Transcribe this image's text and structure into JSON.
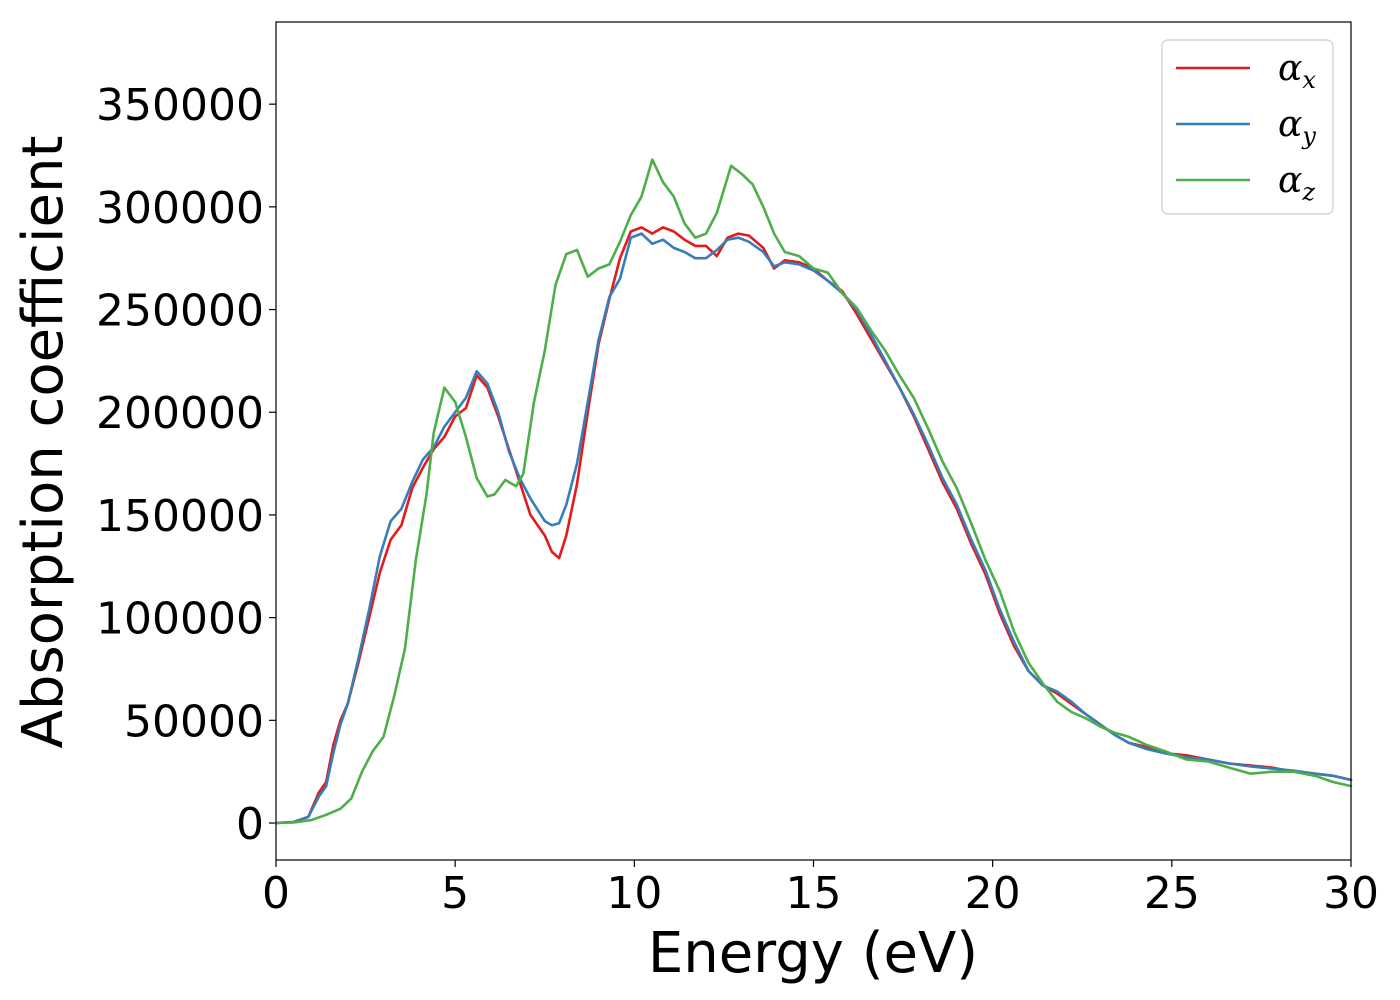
{
  "chart_data": {
    "type": "line",
    "title": "",
    "xlabel": "Energy (eV)",
    "ylabel": "Absorption coefficient",
    "xlim": [
      0,
      30
    ],
    "ylim": [
      -18000,
      390000
    ],
    "xticks": [
      0,
      5,
      10,
      15,
      20,
      25,
      30
    ],
    "yticks": [
      0,
      50000,
      100000,
      150000,
      200000,
      250000,
      300000,
      350000
    ],
    "grid": false,
    "legend_position": "top-right",
    "series": [
      {
        "name": "αx",
        "symbol": "α",
        "subscript": "x",
        "color": "#e41a1c",
        "points": [
          [
            0,
            0
          ],
          [
            0.5,
            500
          ],
          [
            0.9,
            3000
          ],
          [
            1.2,
            15000
          ],
          [
            1.4,
            20000
          ],
          [
            1.6,
            38000
          ],
          [
            1.8,
            50000
          ],
          [
            2.0,
            58000
          ],
          [
            2.3,
            78000
          ],
          [
            2.6,
            100000
          ],
          [
            2.9,
            122000
          ],
          [
            3.2,
            138000
          ],
          [
            3.5,
            145000
          ],
          [
            3.8,
            163000
          ],
          [
            4.1,
            173000
          ],
          [
            4.4,
            182000
          ],
          [
            4.7,
            188000
          ],
          [
            5.0,
            198000
          ],
          [
            5.3,
            202000
          ],
          [
            5.6,
            218000
          ],
          [
            5.9,
            212000
          ],
          [
            6.2,
            198000
          ],
          [
            6.5,
            182000
          ],
          [
            6.8,
            166000
          ],
          [
            7.1,
            150000
          ],
          [
            7.5,
            140000
          ],
          [
            7.7,
            132000
          ],
          [
            7.9,
            129000
          ],
          [
            8.1,
            140000
          ],
          [
            8.4,
            165000
          ],
          [
            8.7,
            200000
          ],
          [
            9.0,
            233000
          ],
          [
            9.3,
            255000
          ],
          [
            9.6,
            275000
          ],
          [
            9.9,
            288000
          ],
          [
            10.2,
            290000
          ],
          [
            10.5,
            287000
          ],
          [
            10.8,
            290000
          ],
          [
            11.1,
            288000
          ],
          [
            11.4,
            284000
          ],
          [
            11.7,
            281000
          ],
          [
            12.0,
            281000
          ],
          [
            12.3,
            276000
          ],
          [
            12.6,
            285000
          ],
          [
            12.9,
            287000
          ],
          [
            13.2,
            286000
          ],
          [
            13.6,
            280000
          ],
          [
            13.9,
            270000
          ],
          [
            14.2,
            274000
          ],
          [
            14.6,
            273000
          ],
          [
            15.0,
            270000
          ],
          [
            15.4,
            264000
          ],
          [
            15.8,
            259000
          ],
          [
            16.2,
            248000
          ],
          [
            16.6,
            236000
          ],
          [
            17.0,
            224000
          ],
          [
            17.4,
            212000
          ],
          [
            17.8,
            198000
          ],
          [
            18.2,
            182000
          ],
          [
            18.6,
            166000
          ],
          [
            19.0,
            153000
          ],
          [
            19.4,
            136000
          ],
          [
            19.8,
            121000
          ],
          [
            20.2,
            102000
          ],
          [
            20.6,
            86000
          ],
          [
            21.0,
            74000
          ],
          [
            21.4,
            67000
          ],
          [
            21.8,
            63000
          ],
          [
            22.2,
            58000
          ],
          [
            22.6,
            53000
          ],
          [
            23.0,
            48000
          ],
          [
            23.4,
            43000
          ],
          [
            23.8,
            39000
          ],
          [
            24.3,
            37000
          ],
          [
            24.8,
            34000
          ],
          [
            25.4,
            33000
          ],
          [
            26.0,
            31000
          ],
          [
            26.6,
            29000
          ],
          [
            27.2,
            28000
          ],
          [
            27.8,
            27000
          ],
          [
            28.4,
            25000
          ],
          [
            29.0,
            24000
          ],
          [
            29.5,
            23000
          ],
          [
            30.0,
            21000
          ]
        ]
      },
      {
        "name": "αy",
        "symbol": "α",
        "subscript": "y",
        "color": "#377eb8",
        "points": [
          [
            0,
            0
          ],
          [
            0.5,
            500
          ],
          [
            0.9,
            3000
          ],
          [
            1.2,
            13000
          ],
          [
            1.4,
            18000
          ],
          [
            1.6,
            34000
          ],
          [
            1.8,
            48000
          ],
          [
            2.0,
            58000
          ],
          [
            2.3,
            80000
          ],
          [
            2.6,
            104000
          ],
          [
            2.9,
            130000
          ],
          [
            3.2,
            147000
          ],
          [
            3.5,
            153000
          ],
          [
            3.8,
            166000
          ],
          [
            4.1,
            177000
          ],
          [
            4.4,
            183000
          ],
          [
            4.7,
            193000
          ],
          [
            5.0,
            200000
          ],
          [
            5.3,
            207000
          ],
          [
            5.6,
            220000
          ],
          [
            5.9,
            214000
          ],
          [
            6.2,
            200000
          ],
          [
            6.5,
            181000
          ],
          [
            6.8,
            168000
          ],
          [
            7.1,
            158000
          ],
          [
            7.5,
            147000
          ],
          [
            7.7,
            145000
          ],
          [
            7.9,
            146000
          ],
          [
            8.1,
            155000
          ],
          [
            8.4,
            175000
          ],
          [
            8.7,
            205000
          ],
          [
            9.0,
            235000
          ],
          [
            9.3,
            256000
          ],
          [
            9.6,
            265000
          ],
          [
            9.9,
            285000
          ],
          [
            10.2,
            287000
          ],
          [
            10.5,
            282000
          ],
          [
            10.8,
            284000
          ],
          [
            11.1,
            280000
          ],
          [
            11.4,
            278000
          ],
          [
            11.7,
            275000
          ],
          [
            12.0,
            275000
          ],
          [
            12.3,
            279000
          ],
          [
            12.6,
            284000
          ],
          [
            12.9,
            285000
          ],
          [
            13.2,
            283000
          ],
          [
            13.6,
            278000
          ],
          [
            13.9,
            271000
          ],
          [
            14.2,
            273000
          ],
          [
            14.6,
            272000
          ],
          [
            15.0,
            269000
          ],
          [
            15.4,
            264000
          ],
          [
            15.8,
            258000
          ],
          [
            16.2,
            250000
          ],
          [
            16.6,
            238000
          ],
          [
            17.0,
            225000
          ],
          [
            17.4,
            212000
          ],
          [
            17.8,
            199000
          ],
          [
            18.2,
            184000
          ],
          [
            18.6,
            168000
          ],
          [
            19.0,
            155000
          ],
          [
            19.4,
            138000
          ],
          [
            19.8,
            123000
          ],
          [
            20.2,
            104000
          ],
          [
            20.6,
            88000
          ],
          [
            21.0,
            74000
          ],
          [
            21.4,
            67000
          ],
          [
            21.8,
            64000
          ],
          [
            22.2,
            59000
          ],
          [
            22.6,
            53000
          ],
          [
            23.0,
            48000
          ],
          [
            23.4,
            43000
          ],
          [
            23.8,
            39000
          ],
          [
            24.3,
            36000
          ],
          [
            24.8,
            34000
          ],
          [
            25.4,
            32000
          ],
          [
            26.0,
            31000
          ],
          [
            26.6,
            29000
          ],
          [
            27.2,
            27500
          ],
          [
            27.8,
            26500
          ],
          [
            28.4,
            25500
          ],
          [
            29.0,
            24000
          ],
          [
            29.5,
            23000
          ],
          [
            30.0,
            21000
          ]
        ]
      },
      {
        "name": "αz",
        "symbol": "α",
        "subscript": "z",
        "color": "#4daf4a",
        "points": [
          [
            0,
            0
          ],
          [
            0.5,
            300
          ],
          [
            1.0,
            1500
          ],
          [
            1.4,
            4000
          ],
          [
            1.8,
            7000
          ],
          [
            2.1,
            12000
          ],
          [
            2.4,
            25000
          ],
          [
            2.7,
            35000
          ],
          [
            3.0,
            42000
          ],
          [
            3.3,
            62000
          ],
          [
            3.6,
            85000
          ],
          [
            3.9,
            128000
          ],
          [
            4.2,
            160000
          ],
          [
            4.4,
            190000
          ],
          [
            4.7,
            212000
          ],
          [
            5.0,
            205000
          ],
          [
            5.3,
            188000
          ],
          [
            5.6,
            168000
          ],
          [
            5.9,
            159000
          ],
          [
            6.1,
            160000
          ],
          [
            6.4,
            167000
          ],
          [
            6.7,
            164000
          ],
          [
            6.9,
            170000
          ],
          [
            7.2,
            205000
          ],
          [
            7.5,
            230000
          ],
          [
            7.8,
            262000
          ],
          [
            8.1,
            277000
          ],
          [
            8.4,
            279000
          ],
          [
            8.7,
            266000
          ],
          [
            9.0,
            270000
          ],
          [
            9.3,
            272000
          ],
          [
            9.6,
            283000
          ],
          [
            9.9,
            296000
          ],
          [
            10.2,
            305000
          ],
          [
            10.5,
            323000
          ],
          [
            10.8,
            312000
          ],
          [
            11.1,
            305000
          ],
          [
            11.4,
            292000
          ],
          [
            11.7,
            285000
          ],
          [
            12.0,
            287000
          ],
          [
            12.3,
            297000
          ],
          [
            12.7,
            320000
          ],
          [
            13.0,
            316000
          ],
          [
            13.3,
            311000
          ],
          [
            13.6,
            300000
          ],
          [
            13.9,
            287000
          ],
          [
            14.2,
            278000
          ],
          [
            14.6,
            276000
          ],
          [
            15.0,
            270000
          ],
          [
            15.4,
            268000
          ],
          [
            15.8,
            258000
          ],
          [
            16.2,
            251000
          ],
          [
            16.6,
            240000
          ],
          [
            17.0,
            230000
          ],
          [
            17.4,
            218000
          ],
          [
            17.8,
            207000
          ],
          [
            18.2,
            192000
          ],
          [
            18.6,
            176000
          ],
          [
            19.0,
            163000
          ],
          [
            19.4,
            146000
          ],
          [
            19.8,
            128000
          ],
          [
            20.2,
            113000
          ],
          [
            20.6,
            93000
          ],
          [
            21.0,
            78000
          ],
          [
            21.4,
            68000
          ],
          [
            21.8,
            59000
          ],
          [
            22.2,
            54000
          ],
          [
            22.6,
            51000
          ],
          [
            23.0,
            47000
          ],
          [
            23.4,
            44000
          ],
          [
            23.8,
            42000
          ],
          [
            24.3,
            38000
          ],
          [
            24.8,
            35000
          ],
          [
            25.4,
            31000
          ],
          [
            26.0,
            30000
          ],
          [
            26.6,
            27000
          ],
          [
            27.2,
            24000
          ],
          [
            27.8,
            25000
          ],
          [
            28.4,
            25000
          ],
          [
            29.0,
            23000
          ],
          [
            29.5,
            20000
          ],
          [
            30.0,
            18000
          ]
        ]
      }
    ]
  }
}
